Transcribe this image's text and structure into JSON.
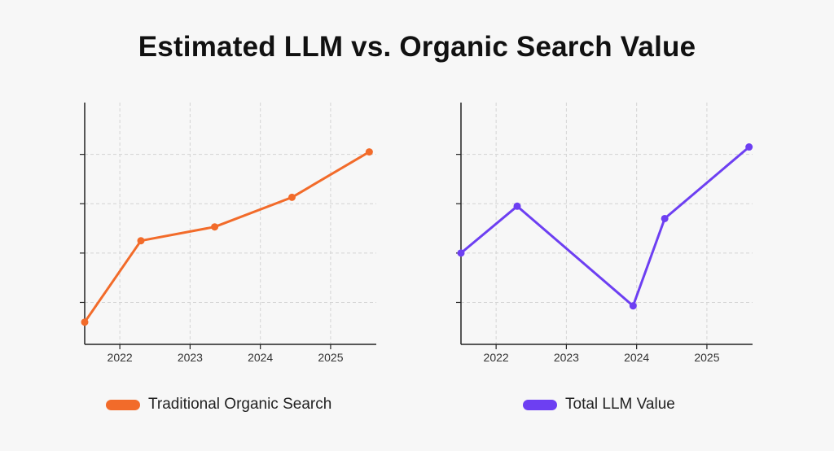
{
  "title": "Estimated LLM vs. Organic Search Value",
  "chart_data": [
    {
      "type": "line",
      "x_ticks": [
        "2022",
        "2023",
        "2024",
        "2025"
      ],
      "x": [
        2021.5,
        2022.3,
        2023.35,
        2024.45,
        2025.55
      ],
      "series": [
        {
          "name": "Traditional Organic Search",
          "color": "#f26b2a",
          "values": [
            0.45,
            2.1,
            2.38,
            2.98,
            3.9
          ]
        }
      ],
      "xlim": [
        2021.5,
        2025.65
      ],
      "ylim": [
        0,
        4.9
      ],
      "y_gridlines": [
        0.85,
        1.85,
        2.85,
        3.85
      ],
      "grid": true,
      "legend": "bottom"
    },
    {
      "type": "line",
      "x_ticks": [
        "2022",
        "2023",
        "2024",
        "2025"
      ],
      "x": [
        2021.5,
        2022.3,
        2023.95,
        2024.4,
        2025.6
      ],
      "series": [
        {
          "name": "Total LLM Value",
          "color": "#6d3ff2",
          "values": [
            1.85,
            2.8,
            0.78,
            2.55,
            4.0
          ]
        }
      ],
      "xlim": [
        2021.5,
        2025.65
      ],
      "ylim": [
        0,
        4.9
      ],
      "y_gridlines": [
        0.85,
        1.85,
        2.85,
        3.85
      ],
      "grid": true,
      "legend": "bottom"
    }
  ]
}
